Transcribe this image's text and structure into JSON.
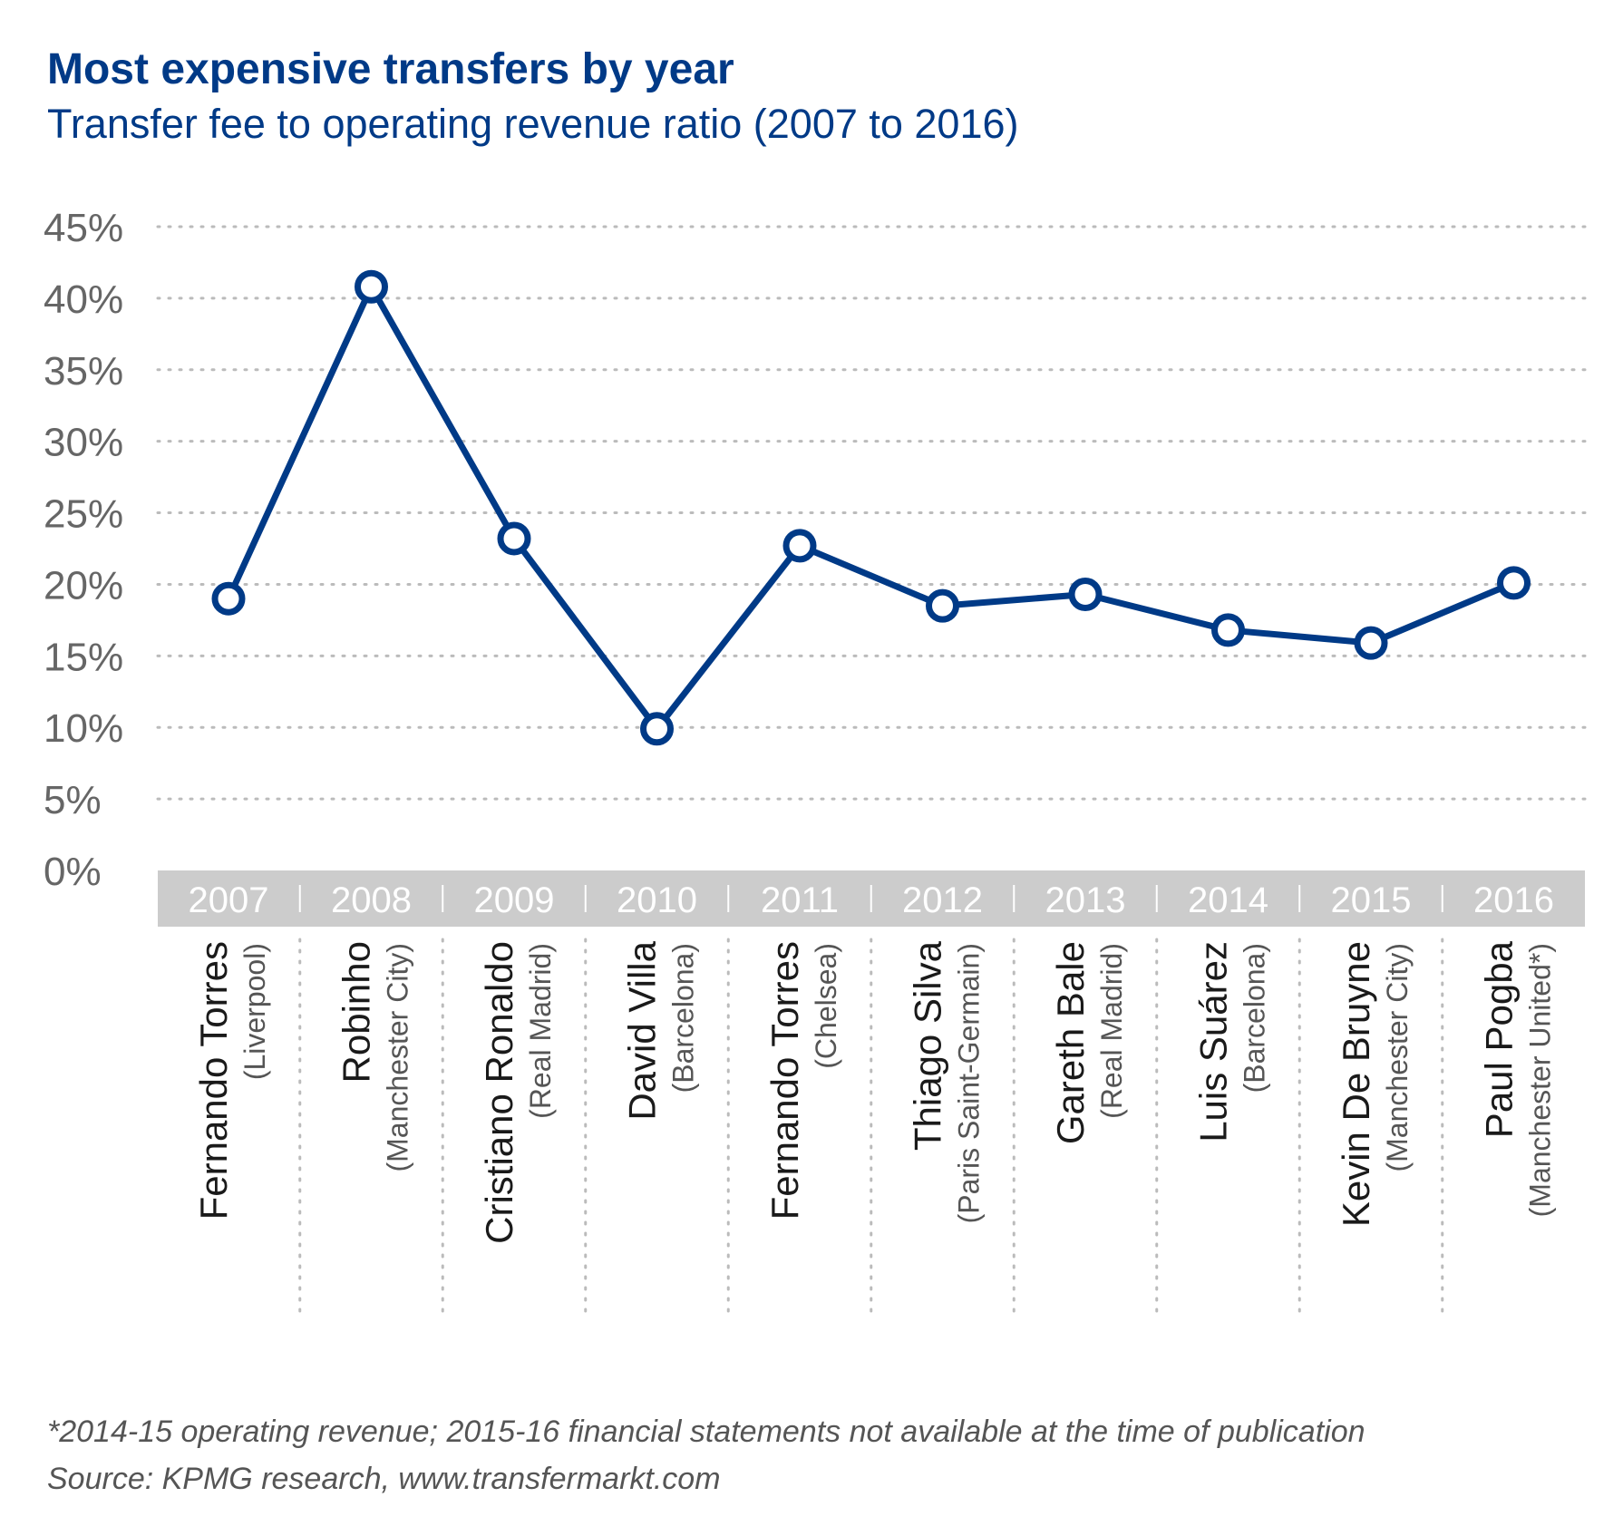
{
  "chart_data": {
    "type": "line",
    "title": "Most expensive transfers by year",
    "subtitle": "Transfer fee to operating revenue ratio (2007 to 2016)",
    "ylabel": "",
    "xlabel": "",
    "ylim": [
      0,
      45
    ],
    "yticks": [
      0,
      5,
      10,
      15,
      20,
      25,
      30,
      35,
      40,
      45
    ],
    "ytick_labels": [
      "0%",
      "5%",
      "10%",
      "15%",
      "20%",
      "25%",
      "30%",
      "35%",
      "40%",
      "45%"
    ],
    "grid": "horizontal dotted",
    "categories": [
      "2007",
      "2008",
      "2009",
      "2010",
      "2011",
      "2012",
      "2013",
      "2014",
      "2015",
      "2016"
    ],
    "players": [
      "Fernando Torres",
      "Robinho",
      "Cristiano Ronaldo",
      "David Villa",
      "Fernando Torres",
      "Thiago Silva",
      "Gareth Bale",
      "Luis Suárez",
      "Kevin De Bruyne",
      "Paul Pogba"
    ],
    "clubs": [
      "(Liverpool)",
      "(Manchester City)",
      "(Real Madrid)",
      "(Barcelona)",
      "(Chelsea)",
      "(Paris Saint-Germain)",
      "(Real Madrid)",
      "(Barcelona)",
      "(Manchester City)",
      "(Manchester United*)"
    ],
    "series": [
      {
        "name": "Transfer fee to operating revenue ratio",
        "values": [
          19,
          40.8,
          23.2,
          9.9,
          22.7,
          18.5,
          19.3,
          16.8,
          15.9,
          20.1
        ]
      }
    ],
    "colors": {
      "line": "#003a87",
      "axis_band": "#cccccc",
      "grid": "#bbbbbb"
    }
  },
  "footnotes": {
    "note": "*2014-15 operating revenue; 2015-16 financial statements not available at the time of publication",
    "source": "Source: KPMG research, www.transfermarkt.com"
  }
}
